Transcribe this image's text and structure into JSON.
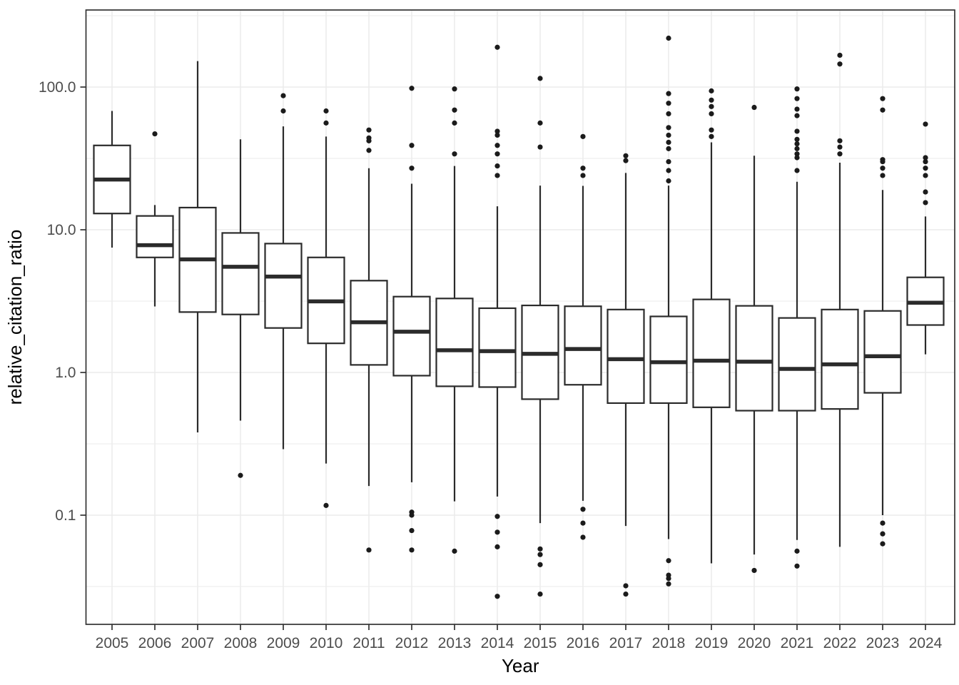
{
  "chart_data": {
    "type": "boxplot",
    "title": "",
    "xlabel": "Year",
    "ylabel": "relative_citation_ratio",
    "y_scale": "log10",
    "ylim": [
      0.017,
      350
    ],
    "grid": "on",
    "legend": "none",
    "y_ticks": [
      {
        "label": "100.0",
        "value": 100
      },
      {
        "label": "10.0",
        "value": 10
      },
      {
        "label": "1.0",
        "value": 1
      },
      {
        "label": "0.1",
        "value": 0.1
      }
    ],
    "y_minor_grid_values": [
      316.2,
      31.62,
      3.162,
      0.3162,
      0.03162
    ],
    "categories": [
      "2005",
      "2006",
      "2007",
      "2008",
      "2009",
      "2010",
      "2011",
      "2012",
      "2013",
      "2014",
      "2015",
      "2016",
      "2017",
      "2018",
      "2019",
      "2020",
      "2021",
      "2022",
      "2023",
      "2024"
    ],
    "series": [
      {
        "year": "2005",
        "whisker_low": 7.5,
        "q1": 13.0,
        "median": 22.5,
        "q3": 39.0,
        "whisker_high": 68,
        "outliers_high": [],
        "outliers_low": []
      },
      {
        "year": "2006",
        "whisker_low": 2.9,
        "q1": 6.4,
        "median": 7.8,
        "q3": 12.5,
        "whisker_high": 14.9,
        "outliers_high": [
          47
        ],
        "outliers_low": []
      },
      {
        "year": "2007",
        "whisker_low": 0.38,
        "q1": 2.65,
        "median": 6.2,
        "q3": 14.3,
        "whisker_high": 152,
        "outliers_high": [],
        "outliers_low": []
      },
      {
        "year": "2008",
        "whisker_low": 0.46,
        "q1": 2.55,
        "median": 5.5,
        "q3": 9.5,
        "whisker_high": 43,
        "outliers_high": [],
        "outliers_low": [
          0.19
        ]
      },
      {
        "year": "2009",
        "whisker_low": 0.29,
        "q1": 2.05,
        "median": 4.7,
        "q3": 8.0,
        "whisker_high": 53,
        "outliers_high": [
          87,
          68
        ],
        "outliers_low": []
      },
      {
        "year": "2010",
        "whisker_low": 0.23,
        "q1": 1.6,
        "median": 3.15,
        "q3": 6.4,
        "whisker_high": 45,
        "outliers_high": [
          68,
          56
        ],
        "outliers_low": [
          0.117
        ]
      },
      {
        "year": "2011",
        "whisker_low": 0.16,
        "q1": 1.13,
        "median": 2.25,
        "q3": 4.4,
        "whisker_high": 27,
        "outliers_high": [
          50,
          44,
          42,
          36
        ],
        "outliers_low": [
          0.057
        ]
      },
      {
        "year": "2012",
        "whisker_low": 0.17,
        "q1": 0.95,
        "median": 1.93,
        "q3": 3.4,
        "whisker_high": 21,
        "outliers_high": [
          98,
          39,
          27
        ],
        "outliers_low": [
          0.105,
          0.1,
          0.078,
          0.057
        ]
      },
      {
        "year": "2013",
        "whisker_low": 0.125,
        "q1": 0.8,
        "median": 1.43,
        "q3": 3.3,
        "whisker_high": 28,
        "outliers_high": [
          97,
          69,
          56,
          34
        ],
        "outliers_low": [
          0.056
        ]
      },
      {
        "year": "2014",
        "whisker_low": 0.135,
        "q1": 0.79,
        "median": 1.41,
        "q3": 2.82,
        "whisker_high": 14.6,
        "outliers_high": [
          190,
          49,
          46,
          39,
          34,
          28,
          24
        ],
        "outliers_low": [
          0.098,
          0.076,
          0.06,
          0.027
        ]
      },
      {
        "year": "2015",
        "whisker_low": 0.088,
        "q1": 0.65,
        "median": 1.35,
        "q3": 2.95,
        "whisker_high": 20.4,
        "outliers_high": [
          115,
          56,
          38
        ],
        "outliers_low": [
          0.058,
          0.053,
          0.045,
          0.028
        ]
      },
      {
        "year": "2016",
        "whisker_low": 0.126,
        "q1": 0.82,
        "median": 1.46,
        "q3": 2.91,
        "whisker_high": 20.3,
        "outliers_high": [
          45,
          27,
          24
        ],
        "outliers_low": [
          0.11,
          0.088,
          0.07
        ]
      },
      {
        "year": "2017",
        "whisker_low": 0.084,
        "q1": 0.61,
        "median": 1.24,
        "q3": 2.76,
        "whisker_high": 25,
        "outliers_high": [
          33,
          30.5
        ],
        "outliers_low": [
          0.032,
          0.028
        ]
      },
      {
        "year": "2018",
        "whisker_low": 0.068,
        "q1": 0.61,
        "median": 1.18,
        "q3": 2.47,
        "whisker_high": 20.4,
        "outliers_high": [
          220,
          90,
          77,
          65,
          52,
          46,
          41,
          37,
          30,
          26,
          22
        ],
        "outliers_low": [
          0.048,
          0.038,
          0.036,
          0.033
        ]
      },
      {
        "year": "2019",
        "whisker_low": 0.046,
        "q1": 0.57,
        "median": 1.21,
        "q3": 3.25,
        "whisker_high": 41,
        "outliers_high": [
          94,
          81,
          73,
          65,
          50,
          45
        ],
        "outliers_low": []
      },
      {
        "year": "2020",
        "whisker_low": 0.053,
        "q1": 0.54,
        "median": 1.19,
        "q3": 2.93,
        "whisker_high": 33,
        "outliers_high": [
          72
        ],
        "outliers_low": [
          0.041
        ]
      },
      {
        "year": "2021",
        "whisker_low": 0.067,
        "q1": 0.54,
        "median": 1.06,
        "q3": 2.41,
        "whisker_high": 21.7,
        "outliers_high": [
          97,
          83,
          70,
          63,
          49,
          43,
          40,
          37,
          34,
          32,
          26
        ],
        "outliers_low": [
          0.056,
          0.044
        ]
      },
      {
        "year": "2022",
        "whisker_low": 0.06,
        "q1": 0.555,
        "median": 1.14,
        "q3": 2.76,
        "whisker_high": 29.5,
        "outliers_high": [
          167,
          145,
          42,
          38,
          34
        ],
        "outliers_low": []
      },
      {
        "year": "2023",
        "whisker_low": 0.1,
        "q1": 0.72,
        "median": 1.3,
        "q3": 2.7,
        "whisker_high": 19,
        "outliers_high": [
          83,
          69,
          31,
          30,
          27,
          24
        ],
        "outliers_low": [
          0.088,
          0.074,
          0.063
        ]
      },
      {
        "year": "2024",
        "whisker_low": 1.34,
        "q1": 2.15,
        "median": 3.08,
        "q3": 4.64,
        "whisker_high": 12.4,
        "outliers_high": [
          55,
          32,
          30,
          27,
          24,
          18.4,
          15.5
        ],
        "outliers_low": []
      }
    ],
    "style": {
      "panel_bg": "#FFFFFF",
      "grid_color": "#EBEBEB",
      "panel_border_color": "#333333",
      "box_stroke_color": "#2B2B2B",
      "box_fill_color": "#FFFFFF",
      "point_color": "#1B1B1B",
      "tick_color": "#333333",
      "tick_label_color": "#4D4D4D",
      "axis_title_color": "#000000"
    }
  }
}
